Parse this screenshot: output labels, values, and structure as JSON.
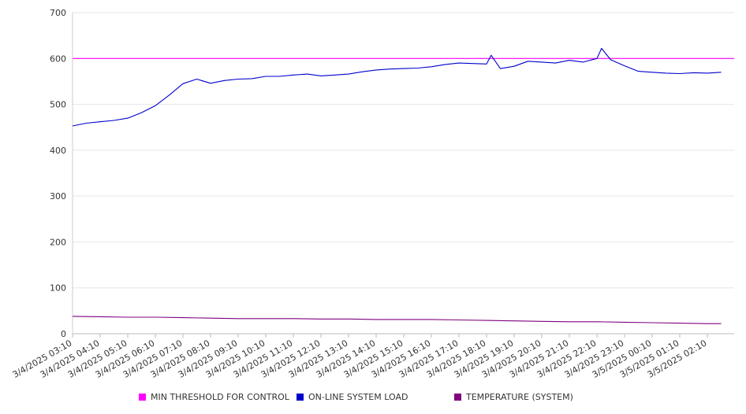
{
  "chart_data": {
    "type": "line",
    "title": "",
    "xlabel": "",
    "ylabel": "",
    "ylim": [
      0,
      700
    ],
    "yticks": [
      0,
      100,
      200,
      300,
      400,
      500,
      600,
      700
    ],
    "grid": true,
    "legend_position": "bottom",
    "x_tick_labels": [
      "3/4/2025 03:10",
      "3/4/2025 04:10",
      "3/4/2025 05:10",
      "3/4/2025 06:10",
      "3/4/2025 07:10",
      "3/4/2025 08:10",
      "3/4/2025 09:10",
      "3/4/2025 10:10",
      "3/4/2025 11:10",
      "3/4/2025 12:10",
      "3/4/2025 13:10",
      "3/4/2025 14:10",
      "3/4/2025 15:10",
      "3/4/2025 16:10",
      "3/4/2025 17:10",
      "3/4/2025 18:10",
      "3/4/2025 19:10",
      "3/4/2025 20:10",
      "3/4/2025 21:10",
      "3/4/2025 22:10",
      "3/4/2025 23:10",
      "3/5/2025 00:10",
      "3/5/2025 01:10",
      "3/5/2025 02:10"
    ],
    "series": [
      {
        "name": "MIN THRESHOLD FOR CONTROL",
        "color": "#ff00ff",
        "x": [
          "3/4/2025 03:10",
          "3/5/2025 02:10"
        ],
        "values": [
          600,
          600
        ]
      },
      {
        "name": "ON-LINE SYSTEM LOAD",
        "color": "#0000cc",
        "x": [
          "3/4/2025 03:10",
          "3/4/2025 03:40",
          "3/4/2025 04:10",
          "3/4/2025 04:40",
          "3/4/2025 05:10",
          "3/4/2025 05:40",
          "3/4/2025 06:10",
          "3/4/2025 06:40",
          "3/4/2025 07:10",
          "3/4/2025 07:40",
          "3/4/2025 08:10",
          "3/4/2025 08:40",
          "3/4/2025 09:10",
          "3/4/2025 09:40",
          "3/4/2025 10:10",
          "3/4/2025 10:40",
          "3/4/2025 11:10",
          "3/4/2025 11:40",
          "3/4/2025 12:10",
          "3/4/2025 12:40",
          "3/4/2025 13:10",
          "3/4/2025 13:40",
          "3/4/2025 14:10",
          "3/4/2025 14:40",
          "3/4/2025 15:10",
          "3/4/2025 15:40",
          "3/4/2025 16:10",
          "3/4/2025 16:40",
          "3/4/2025 17:10",
          "3/4/2025 17:40",
          "3/4/2025 18:10",
          "3/4/2025 18:20",
          "3/4/2025 18:40",
          "3/4/2025 19:10",
          "3/4/2025 19:40",
          "3/4/2025 20:10",
          "3/4/2025 20:40",
          "3/4/2025 21:10",
          "3/4/2025 21:40",
          "3/4/2025 22:10",
          "3/4/2025 22:20",
          "3/4/2025 22:40",
          "3/4/2025 23:10",
          "3/4/2025 23:40",
          "3/5/2025 00:10",
          "3/5/2025 00:40",
          "3/5/2025 01:10",
          "3/5/2025 01:40",
          "3/5/2025 02:10",
          "3/5/2025 02:40"
        ],
        "values": [
          453,
          459,
          462,
          465,
          470,
          482,
          497,
          520,
          545,
          555,
          546,
          552,
          555,
          556,
          561,
          561,
          564,
          566,
          562,
          564,
          566,
          571,
          575,
          577,
          578,
          579,
          582,
          587,
          590,
          589,
          588,
          607,
          578,
          583,
          594,
          592,
          590,
          596,
          592,
          600,
          622,
          597,
          584,
          572,
          570,
          568,
          567,
          569,
          568,
          570
        ]
      },
      {
        "name": "TEMPERATURE (SYSTEM)",
        "color": "#800080",
        "x": [
          "3/4/2025 03:10",
          "3/4/2025 04:10",
          "3/4/2025 05:10",
          "3/4/2025 06:10",
          "3/4/2025 07:10",
          "3/4/2025 08:10",
          "3/4/2025 09:10",
          "3/4/2025 10:10",
          "3/4/2025 11:10",
          "3/4/2025 12:10",
          "3/4/2025 13:10",
          "3/4/2025 14:10",
          "3/4/2025 15:10",
          "3/4/2025 16:10",
          "3/4/2025 17:10",
          "3/4/2025 18:10",
          "3/4/2025 19:10",
          "3/4/2025 20:10",
          "3/4/2025 21:10",
          "3/4/2025 22:10",
          "3/4/2025 23:10",
          "3/5/2025 00:10",
          "3/5/2025 01:10",
          "3/5/2025 02:10",
          "3/5/2025 02:40"
        ],
        "values": [
          38,
          37,
          36,
          36,
          35,
          34,
          33,
          33,
          33,
          32,
          32,
          31,
          31,
          31,
          30,
          29,
          28,
          27,
          26,
          26,
          25,
          24,
          23,
          22,
          22
        ]
      }
    ]
  }
}
